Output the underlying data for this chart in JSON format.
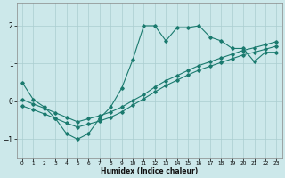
{
  "xlabel": "Humidex (Indice chaleur)",
  "bg_color": "#cce8ea",
  "grid_color": "#aacdd0",
  "line_color": "#1a7a6e",
  "xlim": [
    -0.5,
    23.5
  ],
  "ylim": [
    -1.5,
    2.6
  ],
  "yticks": [
    -1,
    0,
    1,
    2
  ],
  "xticks": [
    0,
    1,
    2,
    3,
    4,
    5,
    6,
    7,
    8,
    9,
    10,
    11,
    12,
    13,
    14,
    15,
    16,
    17,
    18,
    19,
    20,
    21,
    22,
    23
  ],
  "line1_x": [
    0,
    1,
    2,
    3,
    4,
    5,
    6,
    7,
    8,
    9,
    10,
    11,
    12,
    13,
    14,
    15,
    16,
    17,
    18,
    19,
    20,
    21,
    22,
    23
  ],
  "line1_y": [
    0.5,
    0.05,
    -0.15,
    -0.45,
    -0.85,
    -1.0,
    -0.85,
    -0.45,
    -0.15,
    0.35,
    1.1,
    2.0,
    2.0,
    1.6,
    1.95,
    1.95,
    2.0,
    1.7,
    1.6,
    1.4,
    1.4,
    1.05,
    1.3,
    1.3
  ],
  "line2_x": [
    0,
    1,
    2,
    3,
    4,
    5,
    6,
    7,
    8,
    9,
    10,
    11,
    12,
    13,
    14,
    15,
    16,
    17,
    18,
    19,
    20,
    21,
    22,
    23
  ],
  "line2_y": [
    0.05,
    -0.07,
    -0.18,
    -0.3,
    -0.42,
    -0.54,
    -0.46,
    -0.38,
    -0.28,
    -0.15,
    0.02,
    0.18,
    0.38,
    0.55,
    0.68,
    0.82,
    0.95,
    1.05,
    1.15,
    1.25,
    1.35,
    1.42,
    1.5,
    1.58
  ],
  "line3_x": [
    0,
    1,
    2,
    3,
    4,
    5,
    6,
    7,
    8,
    9,
    10,
    11,
    12,
    13,
    14,
    15,
    16,
    17,
    18,
    19,
    20,
    21,
    22,
    23
  ],
  "line3_y": [
    -0.12,
    -0.22,
    -0.33,
    -0.45,
    -0.57,
    -0.68,
    -0.6,
    -0.52,
    -0.42,
    -0.28,
    -0.1,
    0.07,
    0.25,
    0.42,
    0.56,
    0.7,
    0.83,
    0.93,
    1.03,
    1.13,
    1.23,
    1.3,
    1.38,
    1.46
  ]
}
